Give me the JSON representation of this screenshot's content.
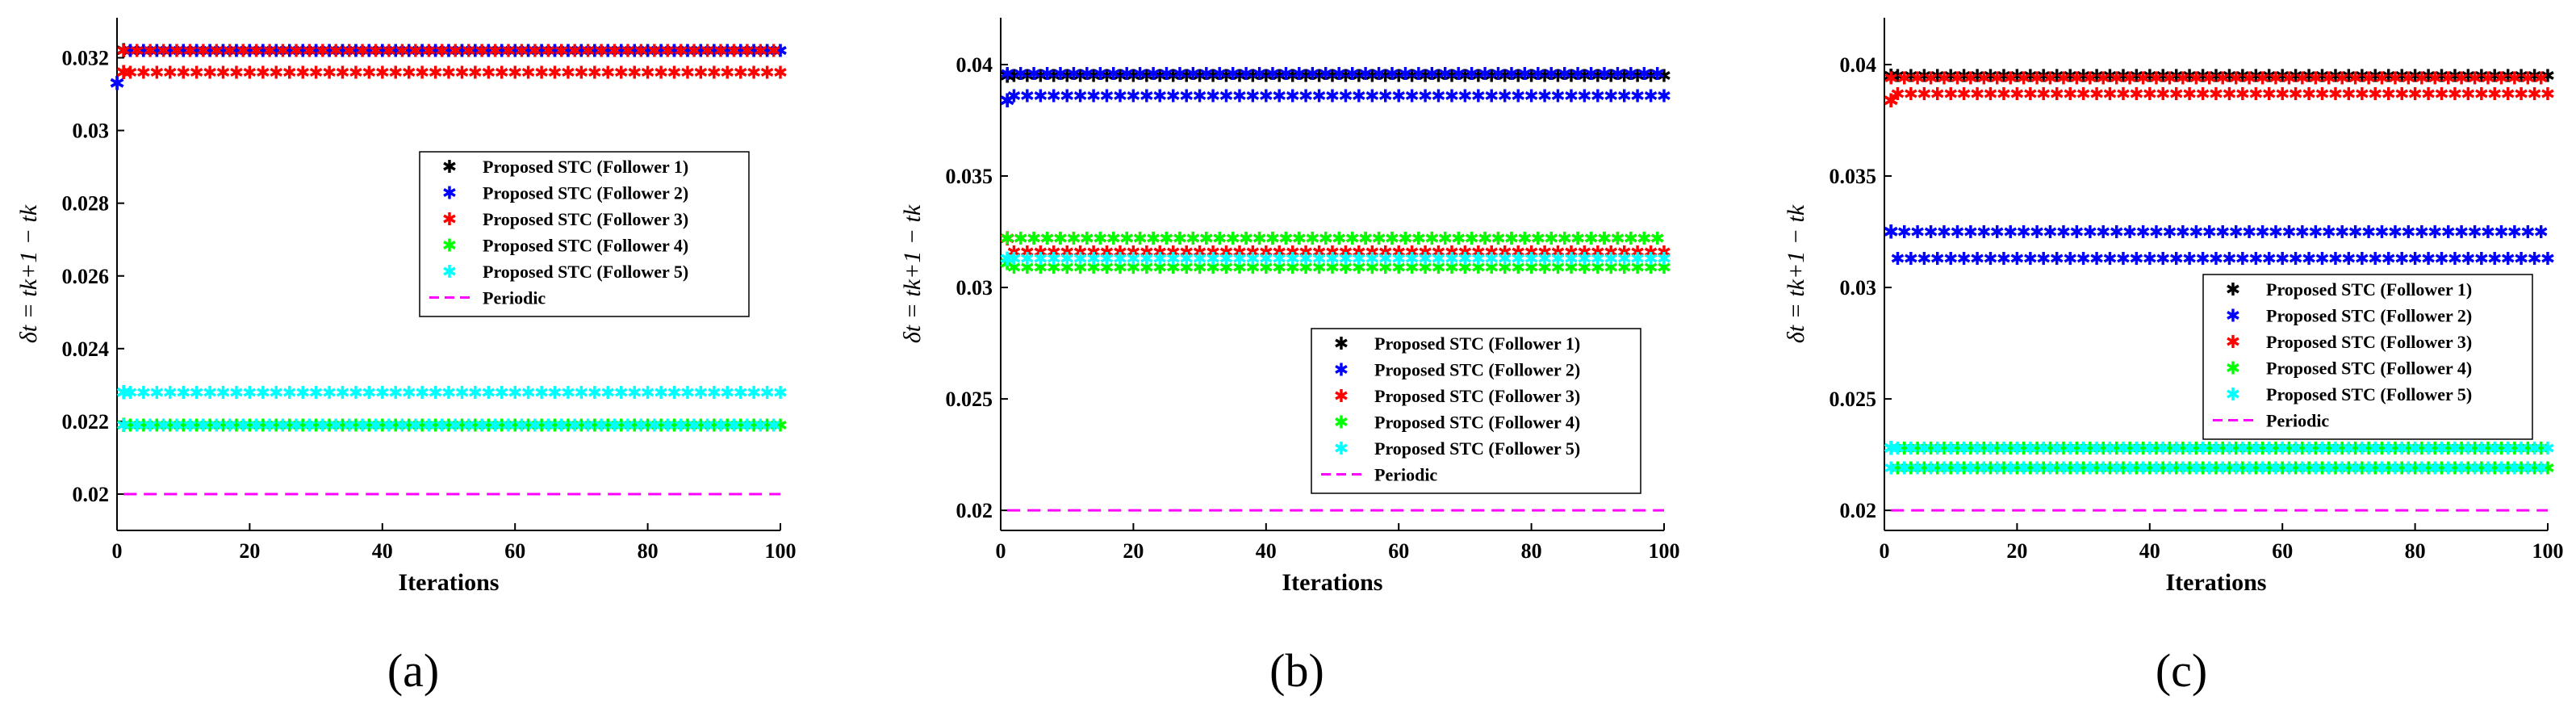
{
  "chart_data": [
    {
      "type": "scatter",
      "panel_label": "(a)",
      "xlabel": "Iterations",
      "ylabel": "δt = tk+1 − tk",
      "xlim": [
        0,
        100
      ],
      "ylim": [
        0.019,
        0.0331
      ],
      "xticks": [
        0,
        20,
        40,
        60,
        80,
        100
      ],
      "yticks": [
        0.02,
        0.022,
        0.024,
        0.026,
        0.028,
        0.03,
        0.032
      ],
      "xtick_labels": [
        "0",
        "20",
        "40",
        "60",
        "80",
        "100"
      ],
      "ytick_labels": [
        "0.02",
        "0.022",
        "0.024",
        "0.026",
        "0.028",
        "0.03",
        "0.032"
      ],
      "legend_position": "center-right",
      "series": [
        {
          "name": "Proposed STC (Follower 1)",
          "color": "#000000",
          "marker": "*",
          "start": {
            "x": 1,
            "y": 0.0322
          },
          "y": 0.0322
        },
        {
          "name": "Proposed STC (Follower 2)",
          "color": "#0000ff",
          "marker": "*",
          "start": {
            "x": 0,
            "y": 0.0313
          },
          "y": 0.0322
        },
        {
          "name": "Proposed STC (Follower 3)",
          "color": "#ff0000",
          "marker": "*",
          "start": {
            "x": 1,
            "y": 0.0316
          },
          "y": 0.0316,
          "alt_y": 0.0322
        },
        {
          "name": "Proposed STC (Follower 4)",
          "color": "#00ff00",
          "marker": "*",
          "start": {
            "x": 1,
            "y": 0.0219
          },
          "y": 0.0219
        },
        {
          "name": "Proposed STC (Follower 5)",
          "color": "#00ffff",
          "marker": "*",
          "start": {
            "x": 1,
            "y": 0.0228
          },
          "y": 0.0228,
          "alt_y": 0.0219
        },
        {
          "name": "Periodic",
          "color": "#ff00ff",
          "style": "dashed",
          "y": 0.02
        }
      ]
    },
    {
      "type": "scatter",
      "panel_label": "(b)",
      "xlabel": "Iterations",
      "ylabel": "δt = tk+1 − tk",
      "xlim": [
        0,
        100
      ],
      "ylim": [
        0.0191,
        0.0421
      ],
      "xticks": [
        0,
        20,
        40,
        60,
        80,
        100
      ],
      "yticks": [
        0.02,
        0.025,
        0.03,
        0.035,
        0.04
      ],
      "xtick_labels": [
        "0",
        "20",
        "40",
        "60",
        "80",
        "100"
      ],
      "ytick_labels": [
        "0.02",
        "0.025",
        "0.03",
        "0.035",
        "0.04"
      ],
      "legend_position": "lower-right",
      "series": [
        {
          "name": "Proposed STC (Follower 1)",
          "color": "#000000",
          "marker": "*",
          "start": {
            "x": 1,
            "y": 0.0395
          },
          "y": 0.0395
        },
        {
          "name": "Proposed STC (Follower 2)",
          "color": "#0000ff",
          "marker": "*",
          "start": {
            "x": 1,
            "y": 0.0384
          },
          "y": 0.0386,
          "alt_y": 0.0396
        },
        {
          "name": "Proposed STC (Follower 3)",
          "color": "#ff0000",
          "marker": "*",
          "start": {
            "x": 1,
            "y": 0.0322
          },
          "y": 0.0316,
          "alt_y": 0.0322
        },
        {
          "name": "Proposed STC (Follower 4)",
          "color": "#00ff00",
          "marker": "*",
          "start": {
            "x": 1,
            "y": 0.0311
          },
          "y": 0.0309,
          "alt_y": 0.0322
        },
        {
          "name": "Proposed STC (Follower 5)",
          "color": "#00ffff",
          "marker": "*",
          "start": {
            "x": 1,
            "y": 0.0313
          },
          "y": 0.0313
        },
        {
          "name": "Periodic",
          "color": "#ff00ff",
          "style": "dashed",
          "y": 0.02
        }
      ]
    },
    {
      "type": "scatter",
      "panel_label": "(c)",
      "xlabel": "Iterations",
      "ylabel": "δt = tk+1 − tk",
      "xlim": [
        0,
        100
      ],
      "ylim": [
        0.0191,
        0.0421
      ],
      "xticks": [
        0,
        20,
        40,
        60,
        80,
        100
      ],
      "yticks": [
        0.02,
        0.025,
        0.03,
        0.035,
        0.04
      ],
      "xtick_labels": [
        "0",
        "20",
        "40",
        "60",
        "80",
        "100"
      ],
      "ytick_labels": [
        "0.02",
        "0.025",
        "0.03",
        "0.035",
        "0.04"
      ],
      "legend_position": "right",
      "series": [
        {
          "name": "Proposed STC (Follower 1)",
          "color": "#000000",
          "marker": "*",
          "start": {
            "x": 1,
            "y": 0.0395
          },
          "y": 0.0395
        },
        {
          "name": "Proposed STC (Follower 2)",
          "color": "#0000ff",
          "marker": "*",
          "start": {
            "x": 1,
            "y": 0.0325
          },
          "y": 0.0313,
          "alt_y": 0.0325
        },
        {
          "name": "Proposed STC (Follower 3)",
          "color": "#ff0000",
          "marker": "*",
          "start": {
            "x": 1,
            "y": 0.0384
          },
          "y": 0.0387,
          "alt_y": 0.0394
        },
        {
          "name": "Proposed STC (Follower 4)",
          "color": "#00ff00",
          "marker": "*",
          "start": {
            "x": 1,
            "y": 0.0228
          },
          "y": 0.0219,
          "alt_y": 0.0228
        },
        {
          "name": "Proposed STC (Follower 5)",
          "color": "#00ffff",
          "marker": "*",
          "start": {
            "x": 1,
            "y": 0.0228
          },
          "y": 0.0228,
          "alt_y": 0.0219
        },
        {
          "name": "Periodic",
          "color": "#ff00ff",
          "style": "dashed",
          "y": 0.02
        }
      ]
    }
  ]
}
